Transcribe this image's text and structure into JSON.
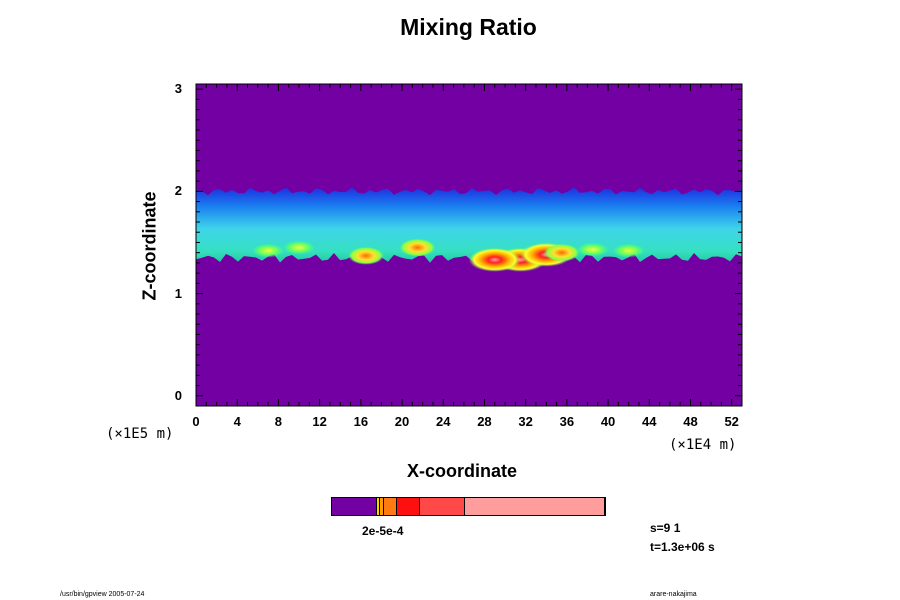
{
  "title": "Mixing Ratio",
  "chart_data": {
    "type": "heatmap",
    "title": "Mixing Ratio",
    "xlabel": "X-coordinate",
    "ylabel": "Z-coordinate",
    "x_scale_label": "(×1E4 m)",
    "y_scale_label": "(×1E5 m)",
    "xlim": [
      0,
      53
    ],
    "ylim": [
      -0.1,
      3.05
    ],
    "x_ticks": [
      "0",
      "4",
      "8",
      "12",
      "16",
      "20",
      "24",
      "28",
      "32",
      "36",
      "40",
      "44",
      "48",
      "52"
    ],
    "y_ticks": [
      "0",
      "1",
      "2",
      "3"
    ],
    "x_tick_values": [
      0,
      4,
      8,
      12,
      16,
      20,
      24,
      28,
      32,
      36,
      40,
      44,
      48,
      52
    ],
    "y_tick_values": [
      0,
      1,
      2,
      3
    ],
    "background_color": "#7300a3",
    "layer": {
      "z_bottom": 1.35,
      "z_top": 2.0,
      "color_top": "#1e2fe0",
      "color_mid": "#3fd5ea",
      "color_bottom": "#23c9a0"
    },
    "hotspots": [
      {
        "x": 31.5,
        "z": 1.33,
        "level": "high"
      },
      {
        "x": 29.0,
        "z": 1.33,
        "level": "high"
      },
      {
        "x": 34.0,
        "z": 1.38,
        "level": "high"
      },
      {
        "x": 35.5,
        "z": 1.4,
        "level": "mid"
      },
      {
        "x": 21.5,
        "z": 1.45,
        "level": "mid"
      },
      {
        "x": 16.5,
        "z": 1.37,
        "level": "mid"
      },
      {
        "x": 10.0,
        "z": 1.45,
        "level": "low"
      },
      {
        "x": 38.5,
        "z": 1.43,
        "level": "low"
      },
      {
        "x": 42.0,
        "z": 1.42,
        "level": "low"
      },
      {
        "x": 7.0,
        "z": 1.42,
        "level": "low"
      }
    ],
    "colorbar": {
      "label": "2e-5e-4",
      "segments": [
        {
          "color": "#7300a3",
          "fraction": 0.165
        },
        {
          "color": "#ffd000",
          "fraction": 0.012
        },
        {
          "color": "#ff9a00",
          "fraction": 0.012
        },
        {
          "color": "#ff7a10",
          "fraction": 0.05
        },
        {
          "color": "#ff1010",
          "fraction": 0.085
        },
        {
          "color": "#ff4848",
          "fraction": 0.165
        },
        {
          "color": "#ff9c9c",
          "fraction": 0.511
        }
      ]
    }
  },
  "step": "s=9 1",
  "time": "t=1.3e+06 s",
  "footer_left": "/usr/bin/gpview 2005-07-24",
  "footer_right": "arare-nakajima"
}
